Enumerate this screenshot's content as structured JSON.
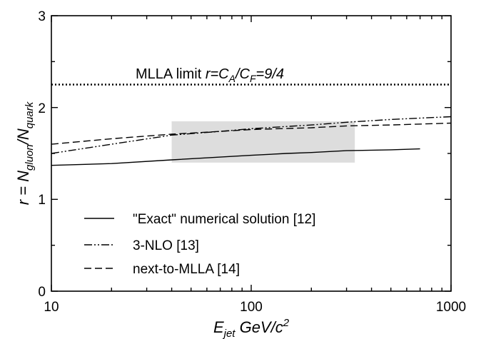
{
  "chart_data": {
    "type": "line",
    "x_scale": "log",
    "xlim": [
      10,
      1000
    ],
    "ylim": [
      0,
      3
    ],
    "x_ticks": [
      "10",
      "100",
      "1000"
    ],
    "y_ticks": [
      "0",
      "1",
      "2",
      "3"
    ],
    "ylabel": {
      "pre": "r = N",
      "sub1": "gluon",
      "mid": "/N",
      "sub2": "quark"
    },
    "xlabel": {
      "pre": "E",
      "sub": "jet",
      "post": "  GeV/c",
      "sup": "2"
    },
    "annotation": {
      "text_pre": "MLLA limit ",
      "text_r": "r=C",
      "sub_a": "A",
      "slash": "/C",
      "sub_f": "F",
      "tail": "=9/4",
      "y": 2.25
    },
    "shaded_region": {
      "x": [
        40,
        330
      ],
      "y": [
        1.4,
        1.85
      ]
    },
    "legend_position": "bottom-left",
    "series": [
      {
        "name": "\"Exact\" numerical solution [12]",
        "style": "solid",
        "points": [
          [
            10,
            1.37
          ],
          [
            20,
            1.39
          ],
          [
            40,
            1.43
          ],
          [
            70,
            1.46
          ],
          [
            100,
            1.48
          ],
          [
            150,
            1.5
          ],
          [
            200,
            1.51
          ],
          [
            300,
            1.53
          ],
          [
            500,
            1.54
          ],
          [
            700,
            1.55
          ]
        ]
      },
      {
        "name": "3-NLO [13]",
        "style": "dashdotdot",
        "points": [
          [
            10,
            1.5
          ],
          [
            20,
            1.6
          ],
          [
            40,
            1.7
          ],
          [
            70,
            1.74
          ],
          [
            100,
            1.77
          ],
          [
            200,
            1.81
          ],
          [
            300,
            1.84
          ],
          [
            500,
            1.87
          ],
          [
            1000,
            1.9
          ]
        ]
      },
      {
        "name": "next-to-MLLA [14]",
        "style": "dashed",
        "points": [
          [
            10,
            1.6
          ],
          [
            20,
            1.66
          ],
          [
            40,
            1.71
          ],
          [
            70,
            1.74
          ],
          [
            100,
            1.76
          ],
          [
            200,
            1.78
          ],
          [
            300,
            1.8
          ],
          [
            500,
            1.81
          ],
          [
            1000,
            1.83
          ]
        ]
      }
    ]
  }
}
